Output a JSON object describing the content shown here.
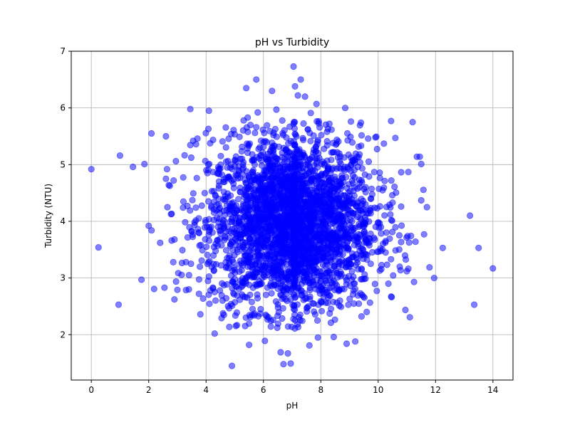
{
  "chart_data": {
    "type": "scatter",
    "title": "pH vs Turbidity",
    "xlabel": "pH",
    "ylabel": "Turbidity (NTU)",
    "xlim": [
      -0.7,
      14.7
    ],
    "ylim": [
      1.2,
      7.0
    ],
    "xticks": [
      "0",
      "2",
      "4",
      "6",
      "8",
      "10",
      "12",
      "14"
    ],
    "yticks": [
      "2",
      "3",
      "4",
      "5",
      "6",
      "7"
    ],
    "grid": true,
    "color": "#0000ff",
    "alpha": 0.5,
    "series": [
      {
        "x": [
          0.0,
          0.25,
          0.95,
          1.0,
          1.45,
          1.75,
          1.85,
          2.0,
          2.1,
          2.4,
          2.55,
          2.6,
          2.6,
          2.7,
          2.8,
          2.9,
          2.95,
          3.0,
          3.2,
          3.3,
          3.35,
          3.4,
          3.45,
          3.5,
          3.55,
          3.6,
          3.65,
          3.7,
          3.75,
          3.8,
          4.1,
          4.15,
          4.3,
          4.9,
          5.05,
          5.4,
          5.45,
          5.5,
          5.75,
          6.05,
          6.3,
          6.6,
          6.7,
          6.85,
          6.95,
          7.05,
          7.05,
          7.0,
          7.1,
          7.2,
          7.3,
          7.45,
          7.55,
          7.6,
          7.85,
          7.9,
          8.35,
          8.45,
          8.85,
          8.9,
          9.05,
          9.2,
          9.4,
          9.6,
          9.95,
          10.2,
          10.45,
          10.6,
          10.75,
          11.0,
          11.2,
          11.25,
          11.35,
          11.45,
          11.5,
          11.6,
          11.95,
          12.25,
          13.2,
          13.35,
          13.5,
          14.0,
          4.05,
          4.2,
          5.15,
          5.3,
          5.45,
          5.55,
          5.8,
          6.35,
          6.45,
          6.8,
          7.55,
          7.65,
          8.25,
          8.55,
          9.1,
          9.35,
          9.65,
          10.5,
          10.8,
          11.05,
          11.5,
          11.7
        ],
        "y": [
          4.92,
          3.54,
          2.53,
          5.16,
          4.96,
          2.97,
          5.01,
          3.92,
          3.84,
          3.62,
          2.83,
          5.5,
          4.75,
          4.64,
          3.66,
          3.68,
          5.06,
          2.79,
          4.24,
          3.28,
          4.27,
          2.8,
          5.98,
          3.83,
          5.42,
          3.98,
          5.36,
          5.46,
          2.72,
          2.36,
          5.95,
          2.78,
          2.02,
          1.45,
          4.28,
          6.35,
          5.83,
          1.82,
          6.5,
          1.89,
          6.3,
          1.69,
          1.48,
          1.67,
          1.49,
          6.73,
          5.72,
          3.7,
          6.38,
          6.22,
          6.5,
          6.2,
          5.62,
          1.81,
          6.07,
          1.95,
          2.21,
          1.96,
          6.0,
          1.84,
          5.76,
          1.88,
          5.74,
          2.4,
          2.77,
          5.37,
          5.77,
          5.47,
          3.2,
          3.12,
          5.75,
          2.93,
          5.14,
          5.14,
          5.01,
          3.77,
          3.0,
          3.53,
          4.1,
          2.53,
          3.53,
          3.17,
          4.85,
          4.53,
          4.88,
          5.04,
          5.21,
          5.7,
          5.92,
          5.52,
          5.97,
          5.48,
          5.62,
          5.91,
          5.63,
          5.37,
          5.39,
          5.18,
          5.46,
          4.33,
          4.26,
          4.87,
          4.37,
          4.25
        ]
      }
    ],
    "density_cluster": {
      "center_x": 7.0,
      "center_y": 3.95,
      "sd_x": 1.45,
      "sd_y": 0.8,
      "count": 3000
    },
    "vertical_band_x": 7.08
  }
}
